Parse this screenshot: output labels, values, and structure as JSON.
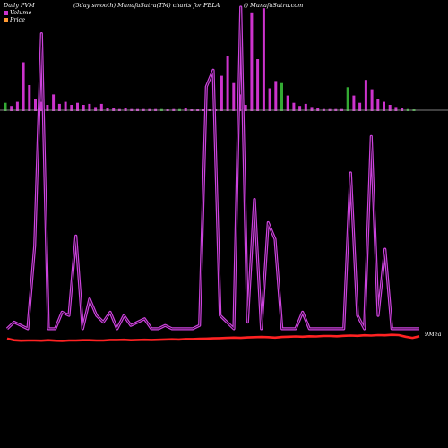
{
  "header": {
    "left": "Daily PVM",
    "middle": "(5day smooth) MunafaSutra(TM) charts for FBLA",
    "right": "() MunafaSutra.com"
  },
  "legend": {
    "volume_label": "Volume",
    "price_label": "Price",
    "volume_color": "#cc33cc",
    "price_color": "#ff9933"
  },
  "end_label": "9Mea",
  "colors": {
    "background": "#000000",
    "volume_bar": "#cc33cc",
    "volume_bar_down": "#33aa33",
    "volume_line": "#cc44dd",
    "price_line": "#ff2222",
    "baseline": "#aaaaaa"
  },
  "chart_data": [
    {
      "type": "bar",
      "series": [
        {
          "name": "Volume",
          "values": [
            8,
            5,
            9,
            47,
            25,
            12,
            9,
            6,
            16,
            7,
            9,
            6,
            8,
            6,
            7,
            4,
            7,
            3,
            3,
            2,
            3,
            2,
            2,
            2,
            2,
            2,
            2,
            1,
            2,
            2,
            3,
            1,
            1,
            1,
            1,
            1,
            34,
            53,
            27,
            16,
            6,
            95,
            50,
            99,
            22,
            29,
            27,
            15,
            8,
            5,
            7,
            4,
            3,
            2,
            2,
            2,
            2,
            23,
            15,
            8,
            30,
            21,
            12,
            9,
            6,
            4,
            3,
            2,
            1
          ],
          "down_indices": [
            0,
            26,
            29,
            46,
            57,
            67,
            68
          ]
        }
      ],
      "ylim": [
        0,
        100
      ]
    },
    {
      "type": "line",
      "series": [
        {
          "name": "Volume",
          "values": [
            3,
            5,
            4,
            3,
            28,
            92,
            3,
            3,
            8,
            7,
            31,
            3,
            12,
            7,
            5,
            8,
            3,
            7,
            4,
            5,
            6,
            3,
            3,
            4,
            3,
            3,
            3,
            3,
            4,
            76,
            81,
            7,
            5,
            3,
            100,
            5,
            42,
            3,
            35,
            30,
            3,
            3,
            3,
            8,
            3,
            3,
            3,
            3,
            3,
            3,
            50,
            7,
            3,
            61,
            7,
            27,
            3,
            3,
            3,
            3,
            3
          ]
        },
        {
          "name": "Price",
          "values": [
            1.2,
            0.5,
            0.3,
            0.4,
            0.4,
            0.3,
            0.5,
            0.3,
            0.2,
            0.4,
            0.4,
            0.5,
            0.5,
            0.4,
            0.4,
            0.6,
            0.6,
            0.7,
            0.5,
            0.6,
            0.7,
            0.6,
            0.7,
            0.8,
            0.9,
            0.8,
            1.0,
            1.0,
            1.1,
            1.2,
            1.3,
            1.4,
            1.5,
            1.6,
            1.5,
            1.7,
            1.8,
            1.9,
            1.8,
            1.6,
            1.9,
            2.0,
            2.1,
            2.0,
            2.2,
            2.1,
            2.3,
            2.3,
            2.2,
            2.4,
            2.5,
            2.4,
            2.6,
            2.5,
            2.7,
            2.6,
            2.8,
            2.7,
            2.0,
            1.5,
            2.2
          ]
        }
      ],
      "ylim": [
        0,
        100
      ]
    }
  ]
}
